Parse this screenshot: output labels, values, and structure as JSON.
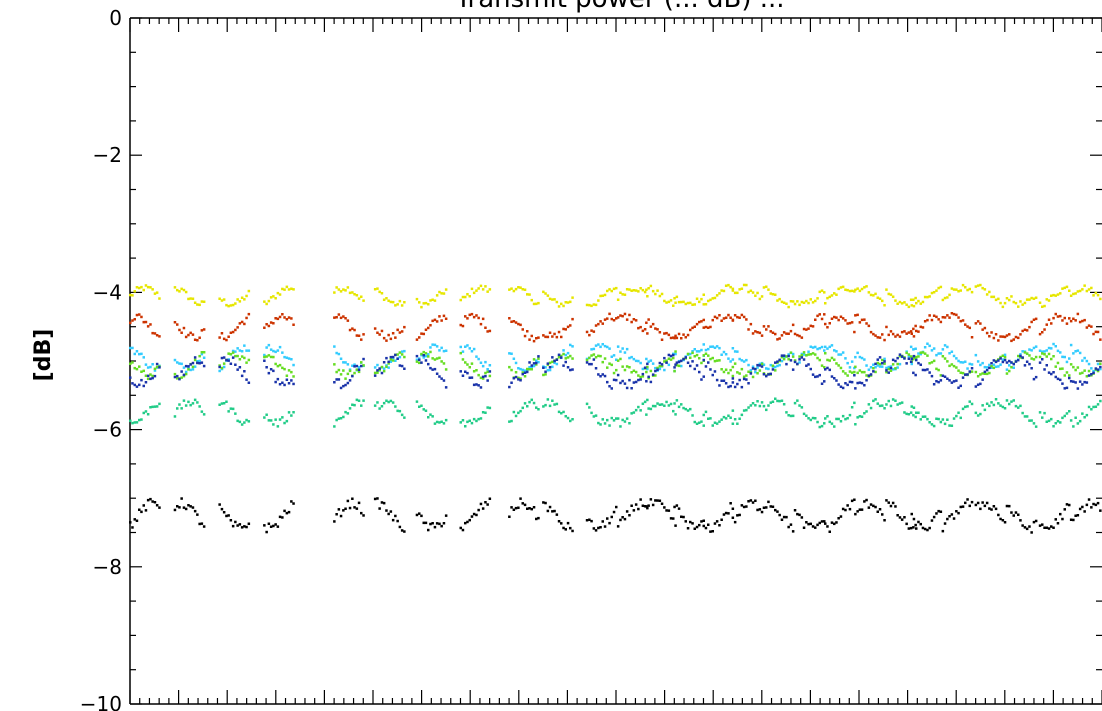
{
  "chart_data": {
    "type": "scatter",
    "title": "Transmit power (... dB) ...",
    "xlabel": "",
    "ylabel": "[dB]",
    "ylim": [
      -10,
      0
    ],
    "yticks": [
      0,
      -2,
      -4,
      -6,
      -8,
      -10
    ],
    "ytick_labels": [
      "0",
      "−2",
      "−4",
      "−6",
      "−8",
      "−10"
    ],
    "x_range": [
      0,
      100
    ],
    "grid": false,
    "groups": [
      0,
      4.6,
      9.2,
      13.8,
      21,
      25.2,
      29.5,
      34,
      39,
      42.5,
      47,
      50.2,
      53.1,
      56,
      59,
      62,
      65.2,
      68.4,
      71.5,
      74.6,
      77.8,
      80.4,
      83.6,
      87,
      90.2,
      93.6,
      96.8
    ],
    "series": [
      {
        "color": "#e6e600",
        "base": -4.05,
        "amp": 0.12
      },
      {
        "color": "#cc3300",
        "base": -4.5,
        "amp": 0.15
      },
      {
        "color": "#33ccff",
        "base": -4.95,
        "amp": 0.15
      },
      {
        "color": "#66dd22",
        "base": -5.05,
        "amp": 0.15
      },
      {
        "color": "#1a33aa",
        "base": -5.15,
        "amp": 0.18
      },
      {
        "color": "#22cc88",
        "base": -5.75,
        "amp": 0.15
      },
      {
        "color": "#000000",
        "base": -7.25,
        "amp": 0.18
      }
    ]
  }
}
